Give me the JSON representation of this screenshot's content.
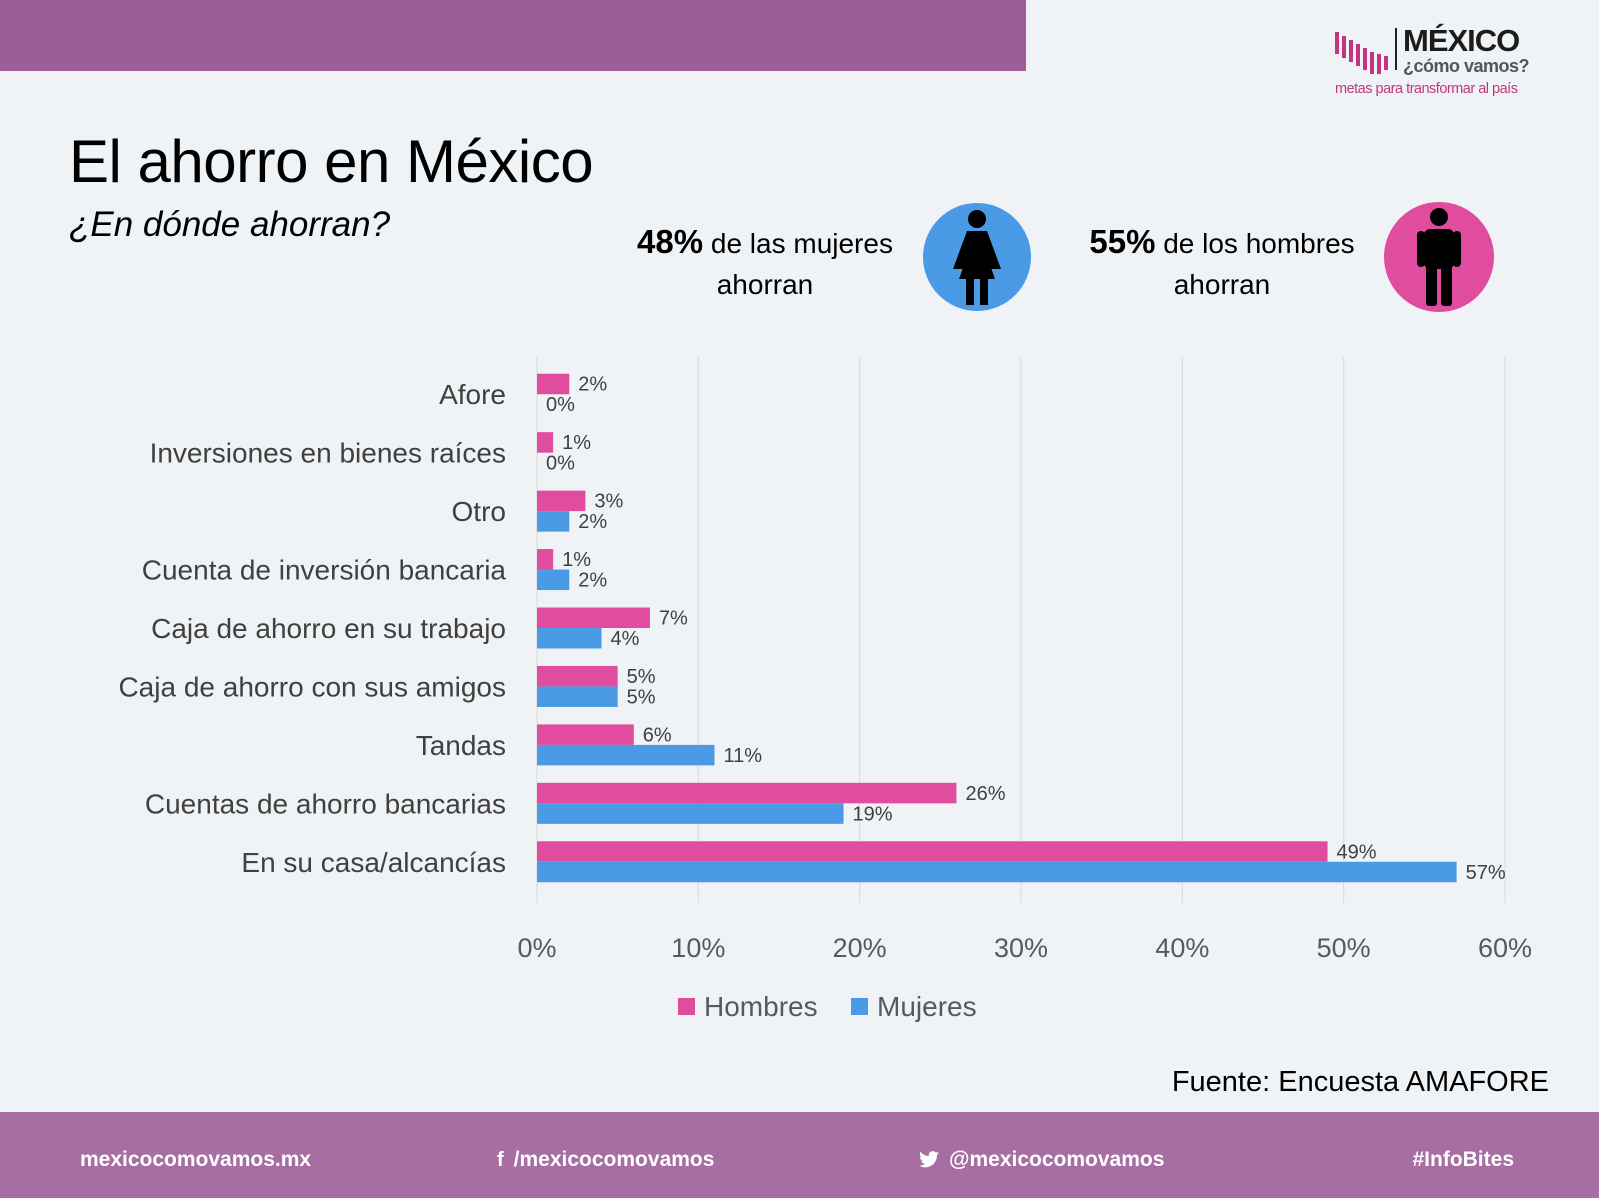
{
  "brand": {
    "logo_title": "MÉXICO",
    "logo_subtitle": "¿cómo vamos?",
    "logo_tagline": "metas para transformar al país",
    "colors": {
      "band": "#9c5e96",
      "footer": "#a66ea3",
      "accent": "#c2367f"
    }
  },
  "header": {
    "title": "El ahorro en México",
    "subtitle": "¿En dónde ahorran?"
  },
  "stats": {
    "women": {
      "pct": "48%",
      "line1": "de las mujeres",
      "line2": "ahorran",
      "icon": "woman-icon",
      "color": "#4a9ae6"
    },
    "men": {
      "pct": "55%",
      "line1": "de los hombres",
      "line2": "ahorran",
      "icon": "man-icon",
      "color": "#e04c9e"
    }
  },
  "chart_data": {
    "type": "bar",
    "orientation": "horizontal",
    "categories": [
      "Afore",
      "Inversiones en bienes raíces",
      "Otro",
      "Cuenta de inversión bancaria",
      "Caja de ahorro en su trabajo",
      "Caja de ahorro con sus amigos",
      "Tandas",
      "Cuentas de ahorro bancarias",
      "En su casa/alcancías"
    ],
    "series": [
      {
        "name": "Hombres",
        "color": "#e04c9e",
        "values": [
          2,
          1,
          3,
          1,
          7,
          5,
          6,
          26,
          49
        ]
      },
      {
        "name": "Mujeres",
        "color": "#4a9ae6",
        "values": [
          0,
          0,
          2,
          2,
          4,
          5,
          11,
          19,
          57
        ]
      }
    ],
    "value_suffix": "%",
    "xlim": [
      0,
      60
    ],
    "xticks": [
      "0%",
      "10%",
      "20%",
      "30%",
      "40%",
      "50%",
      "60%"
    ],
    "grid": true,
    "legend": "bottom"
  },
  "source": "Fuente: Encuesta AMAFORE",
  "footer": {
    "website": "mexicocomovamos.mx",
    "facebook": "/mexicocomovamos",
    "twitter": "@mexicocomovamos",
    "hashtag": "#InfoBites",
    "icons": {
      "facebook": "facebook-icon",
      "twitter": "twitter-icon"
    }
  }
}
